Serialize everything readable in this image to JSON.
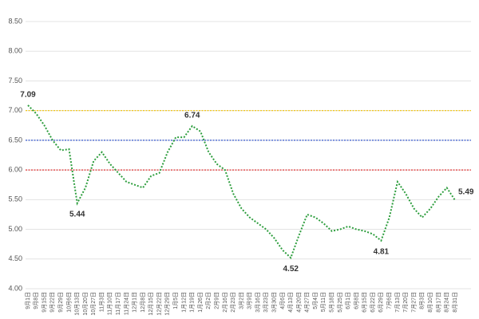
{
  "chart_data": {
    "type": "line",
    "categories": [
      "9月1日",
      "9月8日",
      "9月15日",
      "9月22日",
      "9月29日",
      "10月6日",
      "10月13日",
      "10月20日",
      "10月27日",
      "11月3日",
      "11月10日",
      "11月17日",
      "11月24日",
      "12月1日",
      "12月8日",
      "12月15日",
      "12月22日",
      "12月29日",
      "1月5日",
      "1月12日",
      "1月19日",
      "1月26日",
      "2月2日",
      "2月9日",
      "2月16日",
      "2月23日",
      "3月2日",
      "3月9日",
      "3月16日",
      "3月23日",
      "3月30日",
      "4月6日",
      "4月13日",
      "4月20日",
      "4月27日",
      "5月4日",
      "5月11日",
      "5月18日",
      "5月25日",
      "6月1日",
      "6月8日",
      "6月15日",
      "6月22日",
      "6月29日",
      "7月6日",
      "7月13日",
      "7月20日",
      "7月27日",
      "8月3日",
      "8月10日",
      "8月17日",
      "8月24日",
      "8月31日"
    ],
    "series": [
      {
        "color": "#2e9e3e",
        "values": [
          7.09,
          6.95,
          6.75,
          6.5,
          6.33,
          6.35,
          5.44,
          5.7,
          6.15,
          6.3,
          6.1,
          5.95,
          5.8,
          5.75,
          5.7,
          5.9,
          5.95,
          6.3,
          6.55,
          6.55,
          6.74,
          6.65,
          6.3,
          6.1,
          6.0,
          5.6,
          5.35,
          5.2,
          5.1,
          5.0,
          4.85,
          4.65,
          4.52,
          4.9,
          5.25,
          5.2,
          5.1,
          4.97,
          5.0,
          5.05,
          5.0,
          4.97,
          4.92,
          4.81,
          5.2,
          5.8,
          5.6,
          5.35,
          5.2,
          5.35,
          5.55,
          5.7,
          5.49
        ],
        "value_labels": [
          "7.09",
          null,
          null,
          null,
          null,
          null,
          "5.44",
          null,
          null,
          null,
          null,
          null,
          null,
          null,
          null,
          null,
          null,
          null,
          null,
          null,
          "6.74",
          null,
          null,
          null,
          null,
          null,
          null,
          null,
          null,
          null,
          null,
          null,
          "4.52",
          null,
          null,
          null,
          null,
          null,
          null,
          null,
          null,
          null,
          null,
          "4.81",
          null,
          null,
          null,
          null,
          null,
          null,
          null,
          null,
          "5.49"
        ]
      }
    ],
    "reference_lines": [
      {
        "value": 7.0,
        "color": "#f2c200"
      },
      {
        "value": 6.5,
        "color": "#3355cc"
      },
      {
        "value": 6.0,
        "color": "#e03333"
      }
    ],
    "ylim": [
      4.0,
      8.5
    ],
    "yticks": [
      {
        "value": 4,
        "label": "4.00"
      },
      {
        "value": 4.5,
        "label": "4.50"
      },
      {
        "value": 5,
        "label": "5.00"
      },
      {
        "value": 5.5,
        "label": "5.50"
      },
      {
        "value": 6,
        "label": "6.00"
      },
      {
        "value": 6.5,
        "label": "6.50"
      },
      {
        "value": 7,
        "label": "7.00"
      },
      {
        "value": 7.5,
        "label": "7.50"
      },
      {
        "value": 8,
        "label": "8.00"
      },
      {
        "value": 8.5,
        "label": "8.50"
      }
    ],
    "grid": true
  }
}
